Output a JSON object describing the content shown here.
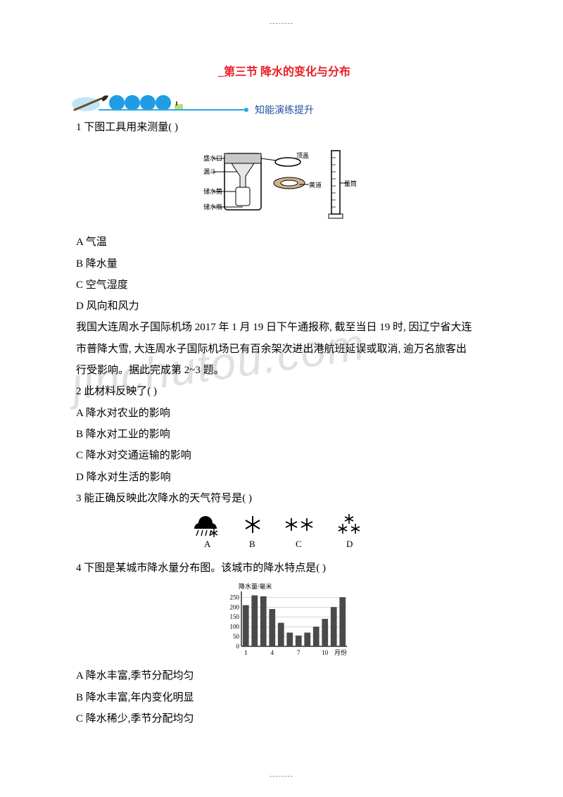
{
  "dots": "--------",
  "title": "_第三节  降水的变化与分布",
  "banner_label": "知能演练提升",
  "q1_stem": "1 下图工具用来测量(    )",
  "q1_opts": [
    "A 气温",
    "B 降水量",
    "C 空气湿度",
    "D 风向和风力"
  ],
  "passage_lines": [
    "我国大连周水子国际机场 2017 年 1 月 19 日下午通报称, 截至当日 19 时, 因辽宁省大连",
    "市普降大雪, 大连周水子国际机场已有百余架次进出港航班延误或取消, 逾万名旅客出",
    "行受影响。据此完成第 2~3 题。"
  ],
  "q2_stem": "2 此材料反映了(    )",
  "q2_opts": [
    "A 降水对农业的影响",
    "B 降水对工业的影响",
    "C 降水对交通运输的影响",
    "D 降水对生活的影响"
  ],
  "q3_stem": "3 能正确反映此次降水的天气符号是(    )",
  "q4_stem": "4 下图是某城市降水量分布图。该城市的降水特点是(    )",
  "q4_opts": [
    "A 降水丰富,季节分配均匀",
    "B 降水丰富,年内变化明显",
    "C 降水稀少,季节分配均匀"
  ],
  "watermark": "jinchutou.com",
  "fig1_labels": {
    "mouth": "盛水口",
    "cap": "顶盖",
    "funnel": "漏斗",
    "cyl_in": "储水筒",
    "base": "黄道",
    "bottle": "储水瓶",
    "grad": "量筒"
  },
  "fig3_labels": [
    "A",
    "B",
    "C",
    "D"
  ],
  "chart": {
    "ylabel": "降水量/毫米",
    "yticks": [
      "250",
      "200",
      "150",
      "100",
      "50",
      "0"
    ],
    "xticks": [
      "1",
      "4",
      "7",
      "10",
      "月份"
    ],
    "values": [
      210,
      260,
      255,
      190,
      120,
      70,
      55,
      70,
      100,
      140,
      200,
      250
    ],
    "ymax": 280,
    "bar_color": "#4a4a4a",
    "grid_color": "#bdbdbd",
    "bg": "#ffffff",
    "font_size": 9
  },
  "colors": {
    "title": "#ec1c24",
    "banner_blue": "#1e9de3",
    "banner_line": "#2aa7ea",
    "banner_text": "#2352a2",
    "text": "#000000"
  }
}
